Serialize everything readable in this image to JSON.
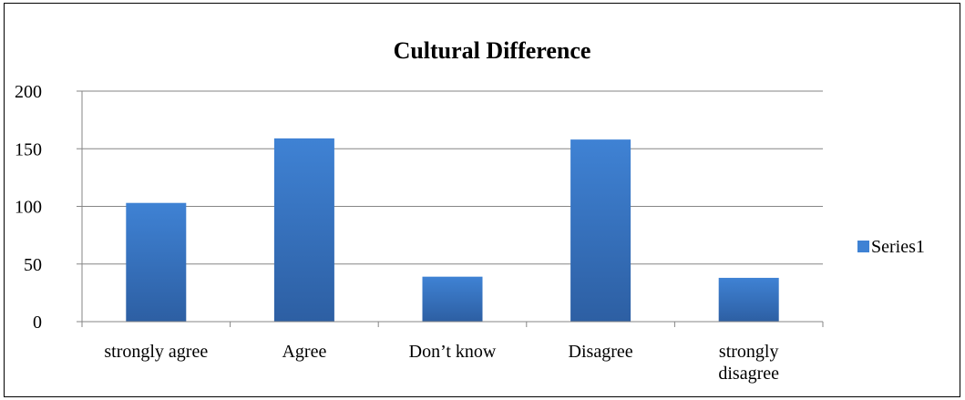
{
  "chart_data": {
    "type": "bar",
    "title": "Cultural Difference",
    "categories": [
      "strongly agree",
      "Agree",
      "Don’t know",
      "Disagree",
      "strongly disagree"
    ],
    "category_lines": [
      [
        "strongly agree"
      ],
      [
        "Agree"
      ],
      [
        "Don’t know"
      ],
      [
        "Disagree"
      ],
      [
        "strongly",
        "disagree"
      ]
    ],
    "series": [
      {
        "name": "Series1",
        "values": [
          103,
          159,
          39,
          158,
          38
        ]
      }
    ],
    "ylim": [
      0,
      200
    ],
    "yticks": [
      0,
      50,
      100,
      150,
      200
    ],
    "grid": true,
    "legend_position": "right",
    "colors": {
      "bar_top": "#3f82d4",
      "bar_bottom": "#2d5fa3",
      "grid": "#868686",
      "axis": "#868686"
    }
  }
}
